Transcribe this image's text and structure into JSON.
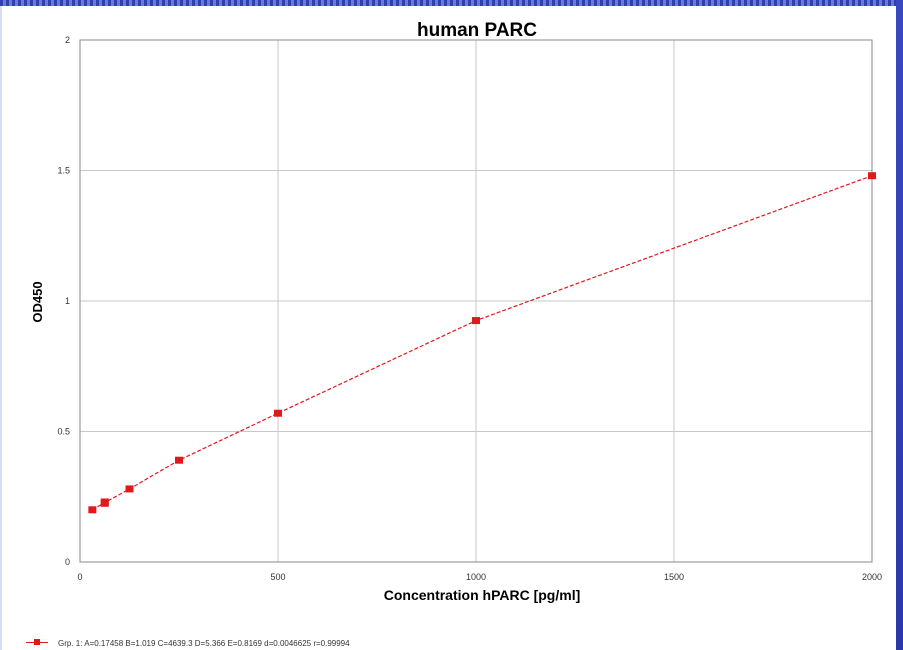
{
  "chart_data": {
    "type": "scatter",
    "title": "human PARC",
    "xlabel": "Concentration hPARC [pg/ml]",
    "ylabel": "OD450",
    "xlim": [
      0,
      2000
    ],
    "ylim": [
      0,
      2
    ],
    "x_ticks": [
      0,
      500,
      1000,
      1500,
      2000
    ],
    "x_tick_labels": [
      "0",
      "500",
      "1000",
      "1500",
      "2000"
    ],
    "y_ticks": [
      0,
      0.5,
      1,
      1.5,
      2
    ],
    "y_tick_labels": [
      "0",
      "0.5",
      "1",
      "1.5",
      "2"
    ],
    "grid": true,
    "series": [
      {
        "name": "Grp. 1: A=0.17458 B=1.019 C=4639.3 D=5.366 E=0.8169 d=0.0046625 r=0.99994",
        "color": "#e0191b",
        "x": [
          31.25,
          62.5,
          62.5,
          125,
          250,
          500,
          1000,
          2000
        ],
        "y": [
          0.2,
          0.225,
          0.23,
          0.28,
          0.39,
          0.57,
          0.925,
          1.48
        ],
        "fit_curve": "dashed"
      }
    ],
    "legend": "bottom-left"
  }
}
